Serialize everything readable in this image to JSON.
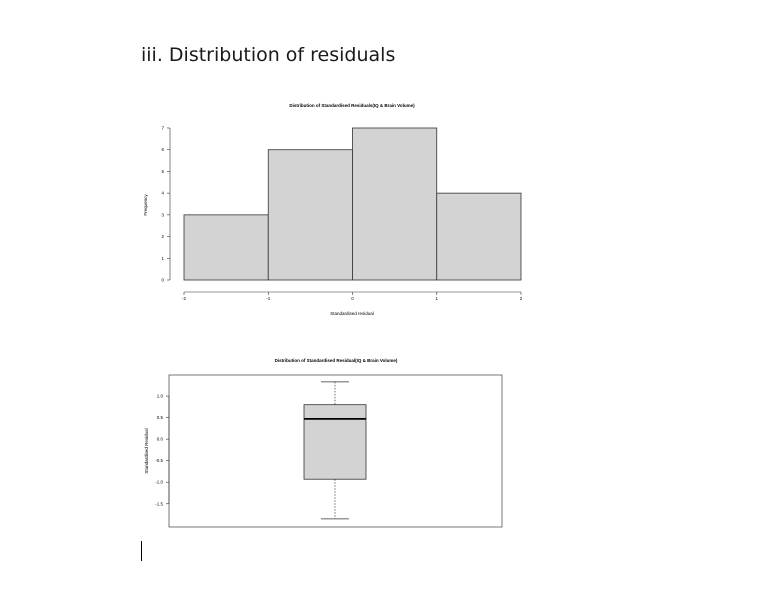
{
  "document": {
    "heading": "iii. Distribution of residuals"
  },
  "chart_data": [
    {
      "type": "histogram",
      "title": "Distribution of Standardised Residuals(IQ & Brain Volume)",
      "xlabel": "Standardised residual",
      "ylabel": "Frequency",
      "bins": [
        {
          "from": -2,
          "to": -1,
          "count": 3
        },
        {
          "from": -1,
          "to": 0,
          "count": 6
        },
        {
          "from": 0,
          "to": 1,
          "count": 7
        },
        {
          "from": 1,
          "to": 2,
          "count": 4
        }
      ],
      "xlim": [
        -2,
        2
      ],
      "ylim": [
        0,
        7
      ],
      "xticks": [
        -2,
        -1,
        0,
        1,
        2
      ],
      "yticks": [
        0,
        1,
        2,
        3,
        4,
        5,
        6,
        7
      ],
      "bar_color": "#d3d3d3",
      "grid": false
    },
    {
      "type": "boxplot",
      "title": "Distribution of Standardised Residual(IQ & Brain Volume)",
      "ylabel": "Standardised Residual",
      "whisker_low": -1.85,
      "q1": -0.93,
      "median": 0.47,
      "q3": 0.8,
      "whisker_high": 1.33,
      "ylim": [
        -1.9,
        1.35
      ],
      "yticks": [
        "1.0",
        "0.5",
        "0.0",
        "-0.5",
        "-1.0",
        "-1.5"
      ],
      "box_color": "#d3d3d3",
      "grid": false
    }
  ]
}
